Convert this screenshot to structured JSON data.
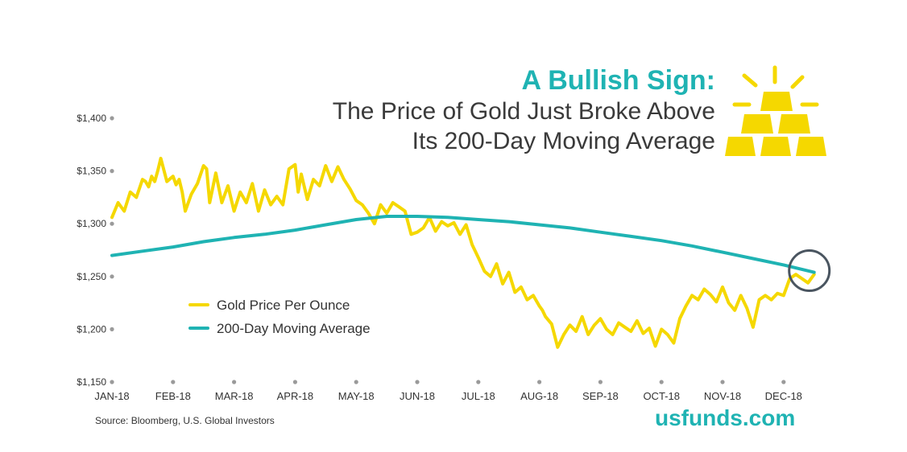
{
  "header": {
    "headline": "A Bullish Sign:",
    "subline_1": "The Price of Gold Just Broke Above",
    "subline_2": "Its 200-Day Moving Average"
  },
  "footer": {
    "source": "Source: Bloomberg, U.S. Global Investors",
    "brand": "usfunds.com"
  },
  "colors": {
    "gold": "#f5d800",
    "moving_average": "#1fb3b3",
    "circle": "#4a5560",
    "dots": "#9a9a9a"
  },
  "icon": "gold-bars-icon",
  "chart_data": {
    "type": "line",
    "title": "",
    "xlabel": "",
    "ylabel": "",
    "ylim": [
      1150,
      1400
    ],
    "yticks": [
      1400,
      1350,
      1300,
      1250,
      1200,
      1150
    ],
    "ytick_labels": [
      "$1,400",
      "$1,350",
      "$1,300",
      "$1,250",
      "$1,200",
      "$1,150"
    ],
    "xtick_labels": [
      "JAN-18",
      "FEB-18",
      "MAR-18",
      "APR-18",
      "MAY-18",
      "JUN-18",
      "JUL-18",
      "AUG-18",
      "SEP-18",
      "OCT-18",
      "NOV-18",
      "DEC-18"
    ],
    "x_range": [
      0,
      11.55
    ],
    "grid": false,
    "legend_position": "lower-left",
    "highlight_annotation": {
      "x": 11.5,
      "y": 1254
    },
    "series": [
      {
        "name": "Gold Price Per Ounce",
        "color": "#f5d800",
        "x": [
          0,
          0.1,
          0.2,
          0.3,
          0.4,
          0.5,
          0.55,
          0.6,
          0.65,
          0.7,
          0.75,
          0.8,
          0.9,
          1.0,
          1.05,
          1.1,
          1.15,
          1.2,
          1.3,
          1.4,
          1.5,
          1.55,
          1.6,
          1.7,
          1.8,
          1.9,
          2.0,
          2.1,
          2.2,
          2.3,
          2.4,
          2.5,
          2.6,
          2.7,
          2.8,
          2.9,
          3.0,
          3.05,
          3.1,
          3.2,
          3.3,
          3.4,
          3.5,
          3.6,
          3.7,
          3.8,
          3.9,
          4.0,
          4.1,
          4.2,
          4.3,
          4.4,
          4.5,
          4.6,
          4.7,
          4.8,
          4.9,
          5.0,
          5.1,
          5.2,
          5.3,
          5.4,
          5.5,
          5.6,
          5.7,
          5.8,
          5.9,
          6.0,
          6.1,
          6.2,
          6.3,
          6.4,
          6.5,
          6.6,
          6.7,
          6.8,
          6.9,
          7.0,
          7.05,
          7.1,
          7.2,
          7.3,
          7.4,
          7.5,
          7.6,
          7.7,
          7.8,
          7.9,
          8.0,
          8.1,
          8.2,
          8.3,
          8.4,
          8.5,
          8.6,
          8.7,
          8.8,
          8.9,
          9.0,
          9.1,
          9.2,
          9.3,
          9.4,
          9.5,
          9.6,
          9.7,
          9.8,
          9.9,
          10.0,
          10.1,
          10.2,
          10.3,
          10.4,
          10.5,
          10.6,
          10.7,
          10.8,
          10.9,
          11.0,
          11.1,
          11.2,
          11.3,
          11.4,
          11.5
        ],
        "values": [
          1306,
          1320,
          1312,
          1330,
          1325,
          1342,
          1340,
          1335,
          1345,
          1340,
          1350,
          1362,
          1340,
          1345,
          1337,
          1342,
          1330,
          1312,
          1328,
          1338,
          1355,
          1352,
          1320,
          1348,
          1320,
          1336,
          1312,
          1330,
          1320,
          1338,
          1312,
          1332,
          1318,
          1326,
          1318,
          1352,
          1356,
          1330,
          1347,
          1323,
          1342,
          1336,
          1355,
          1340,
          1354,
          1342,
          1333,
          1322,
          1318,
          1310,
          1300,
          1318,
          1310,
          1320,
          1316,
          1312,
          1290,
          1292,
          1296,
          1306,
          1293,
          1302,
          1298,
          1301,
          1290,
          1299,
          1280,
          1268,
          1255,
          1250,
          1262,
          1243,
          1254,
          1235,
          1240,
          1228,
          1232,
          1222,
          1218,
          1212,
          1205,
          1183,
          1195,
          1204,
          1198,
          1212,
          1195,
          1204,
          1210,
          1200,
          1195,
          1206,
          1202,
          1198,
          1208,
          1196,
          1201,
          1184,
          1200,
          1195,
          1187,
          1210,
          1222,
          1232,
          1228,
          1238,
          1233,
          1226,
          1240,
          1225,
          1218,
          1232,
          1220,
          1202,
          1228,
          1232,
          1228,
          1234,
          1232,
          1248,
          1252,
          1248,
          1244,
          1252
        ]
      },
      {
        "name": "200-Day Moving Average",
        "color": "#1fb3b3",
        "x": [
          0,
          0.5,
          1.0,
          1.5,
          2.0,
          2.5,
          3.0,
          3.5,
          4.0,
          4.5,
          5.0,
          5.5,
          6.0,
          6.5,
          7.0,
          7.5,
          8.0,
          8.5,
          9.0,
          9.5,
          10.0,
          10.5,
          11.0,
          11.5
        ],
        "values": [
          1270,
          1274,
          1278,
          1283,
          1287,
          1290,
          1294,
          1299,
          1304,
          1307,
          1307,
          1306,
          1304,
          1302,
          1299,
          1296,
          1292,
          1288,
          1284,
          1279,
          1273,
          1267,
          1261,
          1254
        ]
      }
    ]
  }
}
